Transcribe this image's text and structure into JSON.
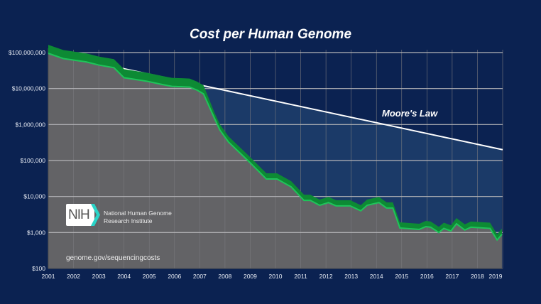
{
  "chart_data": {
    "type": "area",
    "title": "Cost per Human Genome",
    "xlabel": "",
    "ylabel": "",
    "y_scale": "log",
    "ylim": [
      100,
      100000000
    ],
    "xlim": [
      2001,
      2019
    ],
    "y_ticks": [
      {
        "value": 100,
        "label": "$100"
      },
      {
        "value": 1000,
        "label": "$1,000"
      },
      {
        "value": 10000,
        "label": "$10,000"
      },
      {
        "value": 100000,
        "label": "$100,000"
      },
      {
        "value": 1000000,
        "label": "$1,000,000"
      },
      {
        "value": 10000000,
        "label": "$10,000,000"
      },
      {
        "value": 100000000,
        "label": "$100,000,000"
      }
    ],
    "x_ticks": [
      "2001",
      "2002",
      "2003",
      "2004",
      "2005",
      "2006",
      "2007",
      "2008",
      "2009",
      "2010",
      "2011",
      "2012",
      "2013",
      "2014",
      "2015",
      "2016",
      "2017",
      "2018",
      "2019"
    ],
    "grid": true,
    "series": [
      {
        "key": "cost",
        "color": "#0d8a34",
        "x": [
          2001.0,
          2001.6,
          2002.5,
          2003.0,
          2003.6,
          2004.0,
          2004.9,
          2005.5,
          2005.9,
          2006.6,
          2006.9,
          2007.15,
          2007.6,
          2007.8,
          2008.14,
          2008.93,
          2009.64,
          2010.06,
          2010.62,
          2011.13,
          2011.38,
          2011.75,
          2012.1,
          2012.4,
          2012.96,
          2013.38,
          2013.63,
          2014.1,
          2014.4,
          2014.65,
          2014.93,
          2015.7,
          2015.96,
          2016.15,
          2016.47,
          2016.67,
          2016.95,
          2017.17,
          2017.5,
          2017.74,
          2018.5,
          2018.78,
          2018.97
        ],
        "y": [
          95000000,
          68000000,
          55000000,
          45000000,
          38000000,
          20000000,
          16000000,
          13000000,
          11500000,
          11000000,
          9000000,
          7100000,
          1400000,
          700000,
          326000,
          96000,
          30600,
          30600,
          18600,
          7800,
          7800,
          5700,
          6800,
          5500,
          5500,
          4000,
          5700,
          6800,
          4800,
          4800,
          1330,
          1220,
          1460,
          1400,
          1000,
          1300,
          1100,
          1750,
          1170,
          1400,
          1300,
          620,
          890
        ]
      },
      {
        "name": "Moore's Law",
        "key": "moore",
        "color": "#ffffff",
        "x": [
          2001,
          2019
        ],
        "y": [
          100000000,
          200000
        ]
      }
    ],
    "annotations": [
      "Moore's Law"
    ]
  },
  "logo": {
    "text": "NIH",
    "institute_line1": "National Human Genome",
    "institute_line2": "Research Institute"
  },
  "source_url": "genome.gov/sequencingcosts",
  "colors": {
    "background": "#0b2251",
    "gap_fill": "#1b3a68",
    "cost_area": "#636366",
    "band": "#0d8a34",
    "band_edge": "#1fc45a",
    "logo_accent": "#2ad4c8"
  }
}
